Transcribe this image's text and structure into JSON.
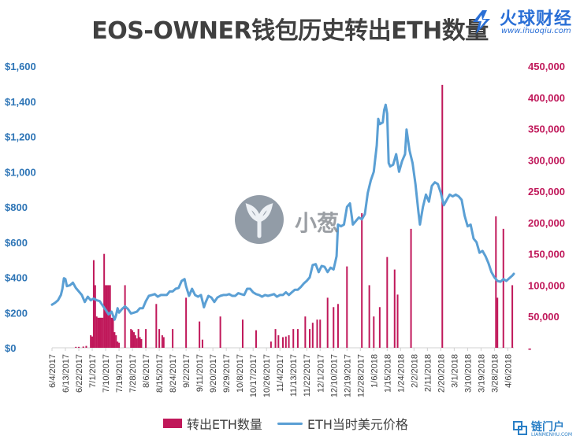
{
  "page": {
    "title": "EOS-OWNER钱包历史转出ETH数量"
  },
  "brand": {
    "name": "火球财经",
    "url": "www.ihuoqiu.com"
  },
  "watermark": {
    "text": "小葱"
  },
  "corner_logo": {
    "name": "链门户",
    "sub": "LIANMENHU.COM"
  },
  "colors": {
    "bar": "#c0185a",
    "line": "#5a9fd4",
    "left_axis": "#2e75b6",
    "right_axis": "#c0185a"
  },
  "chart_data": {
    "type": "bar+line",
    "title": "EOS-OWNER钱包历史转出ETH数量",
    "x_range": [
      "2017-06-04",
      "2018-04-10"
    ],
    "x_tick_labels": [
      "6/4/2017",
      "6/13/2017",
      "6/22/2017",
      "7/1/2017",
      "7/10/2017",
      "7/19/2017",
      "7/28/2017",
      "8/6/2017",
      "8/15/2017",
      "8/24/2017",
      "9/2/2017",
      "9/11/2017",
      "9/20/2017",
      "9/29/2017",
      "10/8/2017",
      "10/17/2017",
      "10/26/2017",
      "11/4/2017",
      "11/13/2017",
      "11/22/2017",
      "12/1/2017",
      "12/10/2017",
      "12/19/2017",
      "12/28/2017",
      "1/6/2018",
      "1/15/2018",
      "1/24/2018",
      "2/2/2018",
      "2/11/2018",
      "2/20/2018",
      "3/1/2018",
      "3/10/2018",
      "3/19/2018",
      "3/28/2018",
      "4/6/2018"
    ],
    "left_axis": {
      "ylim": [
        0,
        1600
      ],
      "ticks": [
        0,
        200,
        400,
        600,
        800,
        1000,
        1200,
        1400,
        1600
      ],
      "tick_labels": [
        "$0",
        "$200",
        "$400",
        "$600",
        "$800",
        "$1,000",
        "$1,200",
        "$1,400",
        "$1,600"
      ]
    },
    "right_axis": {
      "ylim": [
        0,
        450000
      ],
      "ticks": [
        0,
        50000,
        100000,
        150000,
        200000,
        250000,
        300000,
        350000,
        400000,
        450000
      ],
      "tick_labels": [
        "-",
        "50,000",
        "100,000",
        "150,000",
        "200,000",
        "250,000",
        "300,000",
        "350,000",
        "400,000",
        "450,000"
      ]
    },
    "legend": {
      "position": "bottom",
      "bar_label": "转出ETH数量",
      "line_label": "ETH当时美元价格"
    },
    "series": [
      {
        "name": "转出ETH数量",
        "type": "bar",
        "axis": "right",
        "points": [
          [
            "2017-06-20",
            1500
          ],
          [
            "2017-06-22",
            1500
          ],
          [
            "2017-06-25",
            2000
          ],
          [
            "2017-06-27",
            3000
          ],
          [
            "2017-06-30",
            20000
          ],
          [
            "2017-07-01",
            18000
          ],
          [
            "2017-07-02",
            140000
          ],
          [
            "2017-07-03",
            100000
          ],
          [
            "2017-07-04",
            50000
          ],
          [
            "2017-07-05",
            48000
          ],
          [
            "2017-07-06",
            48000
          ],
          [
            "2017-07-07",
            48000
          ],
          [
            "2017-07-08",
            48000
          ],
          [
            "2017-07-09",
            150000
          ],
          [
            "2017-07-10",
            100000
          ],
          [
            "2017-07-11",
            100000
          ],
          [
            "2017-07-12",
            100000
          ],
          [
            "2017-07-13",
            100000
          ],
          [
            "2017-07-14",
            48000
          ],
          [
            "2017-07-15",
            48000
          ],
          [
            "2017-07-16",
            25000
          ],
          [
            "2017-07-17",
            20000
          ],
          [
            "2017-07-18",
            10000
          ],
          [
            "2017-07-19",
            8000
          ],
          [
            "2017-07-23",
            100000
          ],
          [
            "2017-07-27",
            30000
          ],
          [
            "2017-07-28",
            28000
          ],
          [
            "2017-07-29",
            25000
          ],
          [
            "2017-07-30",
            20000
          ],
          [
            "2017-07-31",
            15000
          ],
          [
            "2017-08-01",
            30000
          ],
          [
            "2017-08-02",
            17000
          ],
          [
            "2017-08-03",
            14000
          ],
          [
            "2017-08-06",
            30000
          ],
          [
            "2017-08-13",
            70000
          ],
          [
            "2017-08-15",
            30000
          ],
          [
            "2017-08-17",
            20000
          ],
          [
            "2017-08-18",
            17000
          ],
          [
            "2017-08-24",
            30000
          ],
          [
            "2017-09-02",
            80000
          ],
          [
            "2017-09-11",
            42000
          ],
          [
            "2017-09-13",
            13000
          ],
          [
            "2017-09-25",
            50000
          ],
          [
            "2017-10-10",
            45000
          ],
          [
            "2017-10-19",
            28000
          ],
          [
            "2017-10-29",
            10000
          ],
          [
            "2017-11-01",
            30000
          ],
          [
            "2017-11-03",
            20000
          ],
          [
            "2017-11-06",
            17000
          ],
          [
            "2017-11-08",
            18000
          ],
          [
            "2017-11-10",
            20000
          ],
          [
            "2017-11-13",
            30000
          ],
          [
            "2017-11-16",
            30000
          ],
          [
            "2017-11-21",
            50000
          ],
          [
            "2017-11-24",
            30000
          ],
          [
            "2017-11-26",
            40000
          ],
          [
            "2017-11-29",
            45000
          ],
          [
            "2017-12-01",
            45000
          ],
          [
            "2017-12-06",
            80000
          ],
          [
            "2017-12-10",
            65000
          ],
          [
            "2017-12-13",
            70000
          ],
          [
            "2017-12-19",
            130000
          ],
          [
            "2017-12-29",
            215000
          ],
          [
            "2018-01-03",
            100000
          ],
          [
            "2018-01-06",
            50000
          ],
          [
            "2018-01-10",
            65000
          ],
          [
            "2018-01-15",
            145000
          ],
          [
            "2018-01-20",
            125000
          ],
          [
            "2018-01-22",
            85000
          ],
          [
            "2018-01-31",
            190000
          ],
          [
            "2018-02-21",
            420000
          ],
          [
            "2018-03-29",
            210000
          ],
          [
            "2018-03-30",
            80000
          ],
          [
            "2018-04-03",
            190000
          ],
          [
            "2018-04-09",
            100000
          ]
        ]
      },
      {
        "name": "ETH当时美元价格",
        "type": "line",
        "axis": "left",
        "points": [
          [
            "2017-06-04",
            245
          ],
          [
            "2017-06-06",
            255
          ],
          [
            "2017-06-08",
            270
          ],
          [
            "2017-06-10",
            300
          ],
          [
            "2017-06-11",
            335
          ],
          [
            "2017-06-12",
            395
          ],
          [
            "2017-06-13",
            390
          ],
          [
            "2017-06-14",
            350
          ],
          [
            "2017-06-16",
            355
          ],
          [
            "2017-06-18",
            370
          ],
          [
            "2017-06-20",
            340
          ],
          [
            "2017-06-22",
            320
          ],
          [
            "2017-06-24",
            300
          ],
          [
            "2017-06-26",
            260
          ],
          [
            "2017-06-28",
            290
          ],
          [
            "2017-06-30",
            270
          ],
          [
            "2017-07-02",
            280
          ],
          [
            "2017-07-04",
            270
          ],
          [
            "2017-07-06",
            265
          ],
          [
            "2017-07-08",
            240
          ],
          [
            "2017-07-10",
            215
          ],
          [
            "2017-07-12",
            190
          ],
          [
            "2017-07-14",
            205
          ],
          [
            "2017-07-16",
            160
          ],
          [
            "2017-07-17",
            185
          ],
          [
            "2017-07-18",
            225
          ],
          [
            "2017-07-19",
            200
          ],
          [
            "2017-07-21",
            220
          ],
          [
            "2017-07-23",
            235
          ],
          [
            "2017-07-25",
            220
          ],
          [
            "2017-07-27",
            195
          ],
          [
            "2017-07-29",
            200
          ],
          [
            "2017-07-31",
            205
          ],
          [
            "2017-08-02",
            225
          ],
          [
            "2017-08-04",
            225
          ],
          [
            "2017-08-06",
            265
          ],
          [
            "2017-08-08",
            295
          ],
          [
            "2017-08-10",
            300
          ],
          [
            "2017-08-12",
            305
          ],
          [
            "2017-08-14",
            290
          ],
          [
            "2017-08-16",
            300
          ],
          [
            "2017-08-18",
            300
          ],
          [
            "2017-08-20",
            300
          ],
          [
            "2017-08-22",
            320
          ],
          [
            "2017-08-24",
            320
          ],
          [
            "2017-08-26",
            335
          ],
          [
            "2017-08-28",
            340
          ],
          [
            "2017-08-30",
            380
          ],
          [
            "2017-09-01",
            390
          ],
          [
            "2017-09-02",
            350
          ],
          [
            "2017-09-04",
            295
          ],
          [
            "2017-09-06",
            335
          ],
          [
            "2017-09-08",
            300
          ],
          [
            "2017-09-10",
            290
          ],
          [
            "2017-09-12",
            300
          ],
          [
            "2017-09-14",
            230
          ],
          [
            "2017-09-15",
            255
          ],
          [
            "2017-09-17",
            295
          ],
          [
            "2017-09-19",
            285
          ],
          [
            "2017-09-21",
            260
          ],
          [
            "2017-09-23",
            285
          ],
          [
            "2017-09-25",
            295
          ],
          [
            "2017-09-27",
            300
          ],
          [
            "2017-09-29",
            300
          ],
          [
            "2017-10-01",
            305
          ],
          [
            "2017-10-03",
            295
          ],
          [
            "2017-10-05",
            295
          ],
          [
            "2017-10-07",
            310
          ],
          [
            "2017-10-09",
            305
          ],
          [
            "2017-10-11",
            300
          ],
          [
            "2017-10-13",
            335
          ],
          [
            "2017-10-15",
            335
          ],
          [
            "2017-10-17",
            315
          ],
          [
            "2017-10-19",
            305
          ],
          [
            "2017-10-21",
            300
          ],
          [
            "2017-10-23",
            290
          ],
          [
            "2017-10-25",
            300
          ],
          [
            "2017-10-27",
            295
          ],
          [
            "2017-10-29",
            300
          ],
          [
            "2017-10-31",
            305
          ],
          [
            "2017-11-02",
            290
          ],
          [
            "2017-11-04",
            300
          ],
          [
            "2017-11-06",
            300
          ],
          [
            "2017-11-08",
            315
          ],
          [
            "2017-11-10",
            300
          ],
          [
            "2017-11-12",
            315
          ],
          [
            "2017-11-14",
            330
          ],
          [
            "2017-11-16",
            330
          ],
          [
            "2017-11-18",
            345
          ],
          [
            "2017-11-20",
            365
          ],
          [
            "2017-11-22",
            380
          ],
          [
            "2017-11-24",
            400
          ],
          [
            "2017-11-26",
            470
          ],
          [
            "2017-11-28",
            475
          ],
          [
            "2017-11-30",
            430
          ],
          [
            "2017-12-02",
            465
          ],
          [
            "2017-12-04",
            460
          ],
          [
            "2017-12-06",
            430
          ],
          [
            "2017-12-08",
            455
          ],
          [
            "2017-12-10",
            445
          ],
          [
            "2017-12-12",
            520
          ],
          [
            "2017-12-13",
            700
          ],
          [
            "2017-12-15",
            690
          ],
          [
            "2017-12-17",
            700
          ],
          [
            "2017-12-19",
            800
          ],
          [
            "2017-12-21",
            820
          ],
          [
            "2017-12-23",
            700
          ],
          [
            "2017-12-25",
            720
          ],
          [
            "2017-12-27",
            740
          ],
          [
            "2017-12-29",
            730
          ],
          [
            "2017-12-31",
            760
          ],
          [
            "2018-01-02",
            880
          ],
          [
            "2018-01-04",
            950
          ],
          [
            "2018-01-06",
            1000
          ],
          [
            "2018-01-08",
            1150
          ],
          [
            "2018-01-09",
            1300
          ],
          [
            "2018-01-10",
            1270
          ],
          [
            "2018-01-12",
            1280
          ],
          [
            "2018-01-13",
            1350
          ],
          [
            "2018-01-14",
            1380
          ],
          [
            "2018-01-15",
            1330
          ],
          [
            "2018-01-16",
            1050
          ],
          [
            "2018-01-17",
            1030
          ],
          [
            "2018-01-19",
            1040
          ],
          [
            "2018-01-21",
            1100
          ],
          [
            "2018-01-23",
            1000
          ],
          [
            "2018-01-25",
            1060
          ],
          [
            "2018-01-27",
            1100
          ],
          [
            "2018-01-28",
            1240
          ],
          [
            "2018-01-30",
            1120
          ],
          [
            "2018-02-01",
            1050
          ],
          [
            "2018-02-03",
            930
          ],
          [
            "2018-02-05",
            770
          ],
          [
            "2018-02-06",
            700
          ],
          [
            "2018-02-08",
            800
          ],
          [
            "2018-02-10",
            870
          ],
          [
            "2018-02-12",
            830
          ],
          [
            "2018-02-14",
            920
          ],
          [
            "2018-02-16",
            940
          ],
          [
            "2018-02-18",
            930
          ],
          [
            "2018-02-20",
            880
          ],
          [
            "2018-02-22",
            810
          ],
          [
            "2018-02-24",
            840
          ],
          [
            "2018-02-26",
            870
          ],
          [
            "2018-02-28",
            860
          ],
          [
            "2018-03-02",
            870
          ],
          [
            "2018-03-04",
            860
          ],
          [
            "2018-03-06",
            840
          ],
          [
            "2018-03-08",
            750
          ],
          [
            "2018-03-10",
            690
          ],
          [
            "2018-03-12",
            700
          ],
          [
            "2018-03-14",
            620
          ],
          [
            "2018-03-16",
            600
          ],
          [
            "2018-03-18",
            540
          ],
          [
            "2018-03-20",
            550
          ],
          [
            "2018-03-22",
            520
          ],
          [
            "2018-03-24",
            480
          ],
          [
            "2018-03-26",
            430
          ],
          [
            "2018-03-28",
            400
          ],
          [
            "2018-03-30",
            380
          ],
          [
            "2018-04-01",
            375
          ],
          [
            "2018-04-03",
            390
          ],
          [
            "2018-04-05",
            380
          ],
          [
            "2018-04-07",
            395
          ],
          [
            "2018-04-09",
            410
          ],
          [
            "2018-04-10",
            420
          ]
        ]
      }
    ]
  }
}
